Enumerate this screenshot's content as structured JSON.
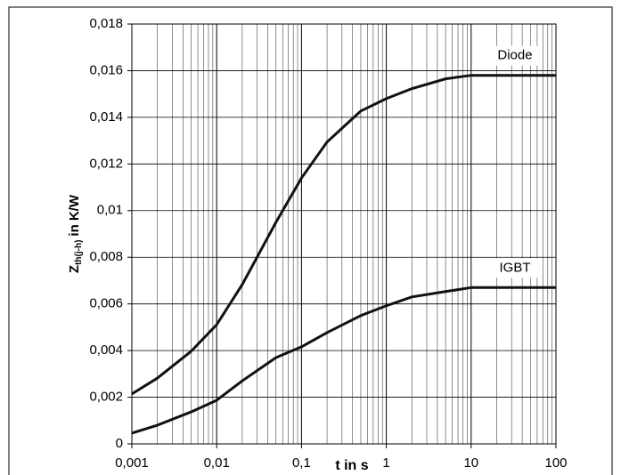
{
  "chart_data": {
    "type": "line",
    "ylabel": {
      "symbol": "Z",
      "subscript": "th(j-h)",
      "unit": "in K/W"
    },
    "xlabel": "t  in s",
    "xlog": true,
    "xlim": [
      0.001,
      100
    ],
    "xticks": [
      {
        "value": 0.001,
        "label": "0,001"
      },
      {
        "value": 0.01,
        "label": "0,01"
      },
      {
        "value": 0.1,
        "label": "0,1"
      },
      1,
      10,
      100
    ],
    "xminor": [
      0.002,
      0.003,
      0.004,
      0.005,
      0.006,
      0.007,
      0.008,
      0.009,
      0.02,
      0.03,
      0.04,
      0.05,
      0.06,
      0.07,
      0.08,
      0.09,
      0.2,
      0.3,
      0.4,
      0.5,
      0.6,
      0.7,
      0.8,
      0.9,
      2,
      3,
      4,
      5,
      6,
      7,
      8,
      9,
      20,
      30,
      40,
      50,
      60,
      70,
      80,
      90
    ],
    "ylim": [
      0,
      0.018
    ],
    "yticks": [
      0,
      {
        "value": 0.002,
        "label": "0,002"
      },
      {
        "value": 0.004,
        "label": "0,004"
      },
      {
        "value": 0.006,
        "label": "0,006"
      },
      {
        "value": 0.008,
        "label": "0,008"
      },
      {
        "value": 0.01,
        "label": "0,01"
      },
      {
        "value": 0.012,
        "label": "0,012"
      },
      {
        "value": 0.014,
        "label": "0,014"
      },
      {
        "value": 0.016,
        "label": "0,016"
      },
      {
        "value": 0.018,
        "label": "0,018"
      }
    ],
    "grid": true,
    "series": [
      {
        "name": "Diode",
        "color": "#111111",
        "x": [
          0.001,
          0.002,
          0.005,
          0.01,
          0.02,
          0.05,
          0.1,
          0.2,
          0.5,
          1,
          2,
          5,
          10,
          100
        ],
        "values": [
          0.00214,
          0.00282,
          0.00397,
          0.00511,
          0.00683,
          0.0095,
          0.0114,
          0.01294,
          0.01427,
          0.0148,
          0.01523,
          0.01565,
          0.0158,
          0.0158
        ]
      },
      {
        "name": "IGBT",
        "color": "#111111",
        "x": [
          0.001,
          0.002,
          0.005,
          0.01,
          0.02,
          0.05,
          0.1,
          0.2,
          0.5,
          1,
          2,
          5,
          10,
          100
        ],
        "values": [
          0.00046,
          0.0008,
          0.00137,
          0.00187,
          0.0027,
          0.0037,
          0.00416,
          0.00477,
          0.0055,
          0.00592,
          0.0063,
          0.00653,
          0.0067,
          0.0067
        ]
      }
    ]
  }
}
